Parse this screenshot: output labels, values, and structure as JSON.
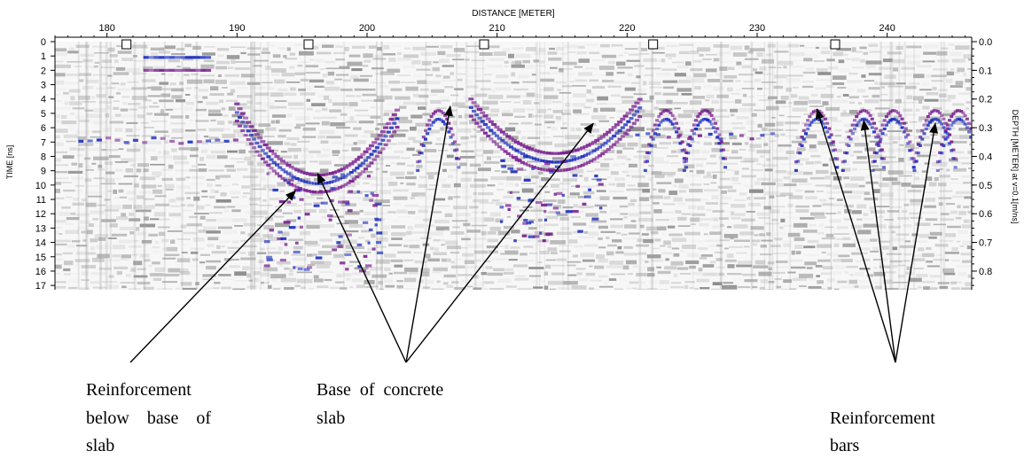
{
  "axes": {
    "top_label": "DISTANCE [METER]",
    "left_label": "TIME [ns]",
    "right_label": "DEPTH [METER] at v=0.1[m/ns]",
    "x_ticks": [
      "180",
      "190",
      "200",
      "210",
      "220",
      "230",
      "240"
    ],
    "x_tick_values": [
      180,
      190,
      200,
      210,
      220,
      230,
      240
    ],
    "x_range": [
      176,
      246.5
    ],
    "time_ticks": [
      "0",
      "1",
      "2",
      "3",
      "4",
      "5",
      "6",
      "7",
      "8",
      "9",
      "10",
      "11",
      "12",
      "13",
      "14",
      "15",
      "16",
      "17"
    ],
    "time_range": [
      0,
      17.3
    ],
    "depth_ticks": [
      "0.0",
      "0.1",
      "0.2",
      "0.3",
      "0.4",
      "0.5",
      "0.6",
      "0.7",
      "0.8"
    ],
    "depth_values": [
      0.0,
      0.1,
      0.2,
      0.3,
      0.4,
      0.5,
      0.6,
      0.7,
      0.8
    ],
    "depth_per_ns": 0.05,
    "markers_at_distance": [
      181.5,
      195.5,
      209,
      222,
      236
    ]
  },
  "annotations": [
    {
      "id": "reinforcement-below-base",
      "lines": [
        "Reinforcement",
        "below    base    of",
        "slab"
      ],
      "targets": [
        [
          194.5,
          10.4
        ]
      ]
    },
    {
      "id": "base-of-concrete-slab",
      "lines": [
        "Base  of  concrete",
        "slab"
      ],
      "targets": [
        [
          196.2,
          9.2
        ],
        [
          206.4,
          4.5
        ],
        [
          217.4,
          5.7
        ]
      ]
    },
    {
      "id": "reinforcement-bars",
      "lines": [
        "Reinforcement",
        "bars"
      ],
      "targets": [
        [
          234.6,
          4.7
        ],
        [
          238.2,
          5.5
        ],
        [
          243.7,
          5.7
        ]
      ]
    }
  ],
  "colors": {
    "positive_reflection": "#7a1f8f",
    "negative_reflection": "#1a2bbf",
    "background_noise": "#8c8c8c",
    "marker_fill": "#ffffff"
  }
}
